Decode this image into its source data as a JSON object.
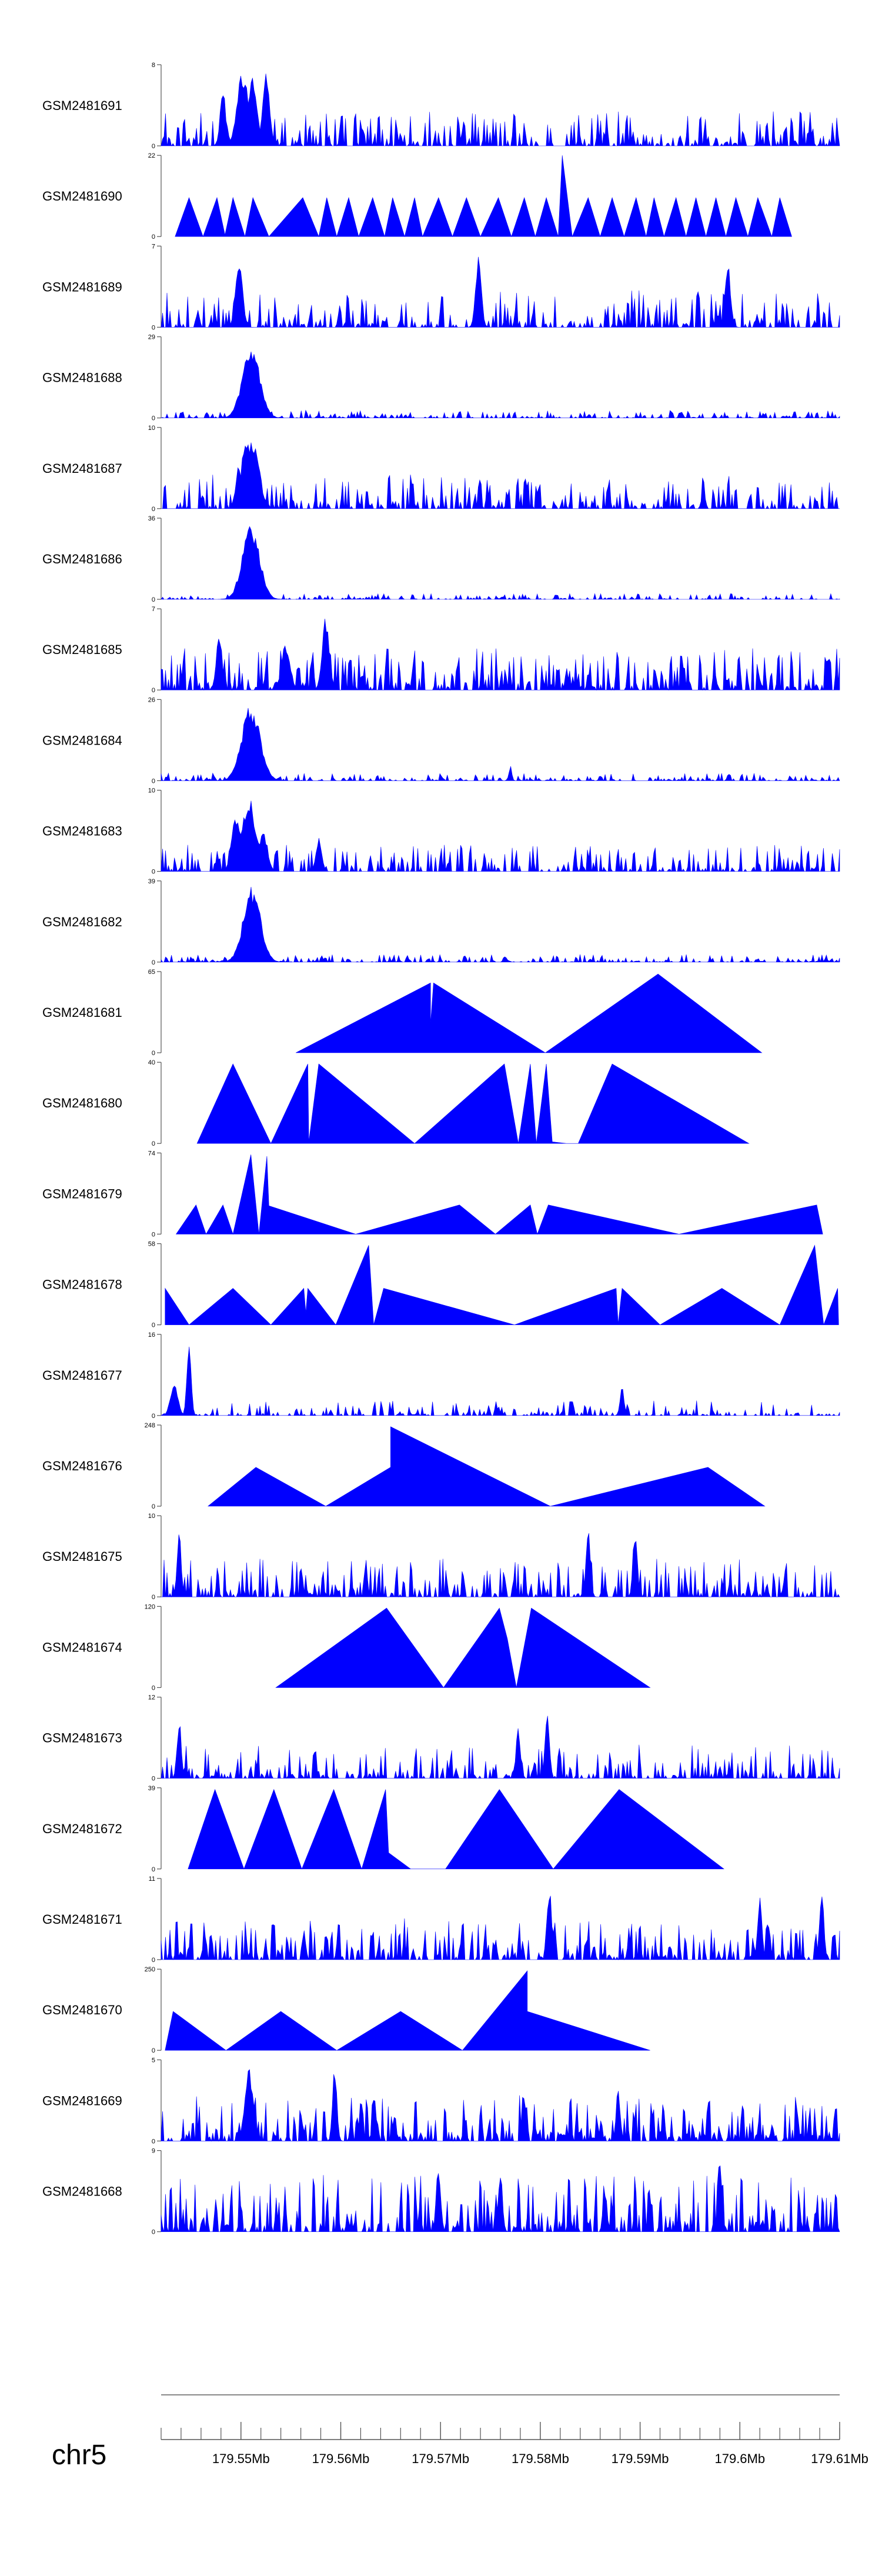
{
  "chart_data": {
    "type": "area",
    "fill_color": "#0000ff",
    "chromosome": "chr5",
    "x_range_mb": [
      179.542,
      179.61
    ],
    "x_ticks": [
      {
        "value": 179.55,
        "label": "179.55Mb"
      },
      {
        "value": 179.56,
        "label": "179.56Mb"
      },
      {
        "value": 179.57,
        "label": "179.57Mb"
      },
      {
        "value": 179.58,
        "label": "179.58Mb"
      },
      {
        "value": 179.59,
        "label": "179.59Mb"
      },
      {
        "value": 179.6,
        "label": "179.6Mb"
      },
      {
        "value": 179.61,
        "label": "179.61Mb"
      }
    ],
    "tracks": [
      {
        "name": "GSM2481691",
        "ymax": 8,
        "ymax_label": "8",
        "ymin_label": "0",
        "style": "noise",
        "density": 0.55,
        "base": 0.18,
        "peaks": [
          [
            179.5502,
            0.95,
            0.0008
          ],
          [
            179.5512,
            0.9,
            0.0006
          ],
          [
            179.5525,
            0.9,
            0.0005
          ],
          [
            179.5482,
            0.7,
            0.0004
          ]
        ]
      },
      {
        "name": "GSM2481690",
        "ymax": 22,
        "ymax_label": "22",
        "ymin_label": "0",
        "style": "points",
        "points": [
          [
            179.5434,
            0
          ],
          [
            179.5448,
            0.48
          ],
          [
            179.5462,
            0
          ],
          [
            179.5476,
            0.48
          ],
          [
            179.5484,
            0.02
          ],
          [
            179.5492,
            0.48
          ],
          [
            179.5504,
            0
          ],
          [
            179.5512,
            0.48
          ],
          [
            179.5528,
            0
          ],
          [
            179.5562,
            0.48
          ],
          [
            179.5578,
            0
          ],
          [
            179.5586,
            0.48
          ],
          [
            179.5596,
            0
          ],
          [
            179.5608,
            0.48
          ],
          [
            179.5618,
            0
          ],
          [
            179.5632,
            0.48
          ],
          [
            179.5644,
            0
          ],
          [
            179.5652,
            0.48
          ],
          [
            179.5664,
            0
          ],
          [
            179.5674,
            0.48
          ],
          [
            179.5682,
            0
          ],
          [
            179.5698,
            0.48
          ],
          [
            179.5712,
            0
          ],
          [
            179.5726,
            0.48
          ],
          [
            179.574,
            0
          ],
          [
            179.5758,
            0.48
          ],
          [
            179.5771,
            0
          ],
          [
            179.5784,
            0.48
          ],
          [
            179.5795,
            0
          ],
          [
            179.5806,
            0.48
          ],
          [
            179.5818,
            0
          ],
          [
            179.5822,
            1.0
          ],
          [
            179.5832,
            0
          ],
          [
            179.5848,
            0.48
          ],
          [
            179.586,
            0
          ],
          [
            179.5872,
            0.48
          ],
          [
            179.5884,
            0
          ],
          [
            179.5896,
            0.48
          ],
          [
            179.5906,
            0
          ],
          [
            179.5914,
            0.48
          ],
          [
            179.5924,
            0
          ],
          [
            179.5936,
            0.48
          ],
          [
            179.5946,
            0
          ],
          [
            179.5956,
            0.48
          ],
          [
            179.5966,
            0
          ],
          [
            179.5976,
            0.48
          ],
          [
            179.5986,
            0
          ],
          [
            179.5996,
            0.48
          ],
          [
            179.6008,
            0
          ],
          [
            179.6018,
            0.48
          ],
          [
            179.6032,
            0
          ],
          [
            179.604,
            0.48
          ],
          [
            179.6052,
            0
          ]
        ]
      },
      {
        "name": "GSM2481689",
        "ymax": 7,
        "ymax_label": "7",
        "ymin_label": "0",
        "style": "noise",
        "density": 0.55,
        "base": 0.2,
        "peaks": [
          [
            179.5738,
            0.95,
            0.0004
          ],
          [
            179.5498,
            0.85,
            0.0005
          ],
          [
            179.5988,
            0.8,
            0.0004
          ]
        ]
      },
      {
        "name": "GSM2481688",
        "ymax": 29,
        "ymax_label": "29",
        "ymin_label": "0",
        "style": "peak",
        "density": 0.5,
        "base": 0.04,
        "peaks": [
          [
            179.551,
            0.95,
            0.0012
          ],
          [
            179.5504,
            0.7,
            0.0004
          ]
        ]
      },
      {
        "name": "GSM2481687",
        "ymax": 10,
        "ymax_label": "10",
        "ymin_label": "0",
        "style": "noise",
        "density": 0.5,
        "base": 0.18,
        "peaks": [
          [
            179.5505,
            0.98,
            0.0006
          ],
          [
            179.5512,
            0.85,
            0.0009
          ],
          [
            179.5498,
            0.6,
            0.0004
          ]
        ]
      },
      {
        "name": "GSM2481686",
        "ymax": 36,
        "ymax_label": "36",
        "ymin_label": "0",
        "style": "peak",
        "density": 0.45,
        "base": 0.03,
        "peaks": [
          [
            179.551,
            0.95,
            0.0012
          ],
          [
            179.5507,
            0.7,
            0.0004
          ]
        ]
      },
      {
        "name": "GSM2481685",
        "ymax": 7,
        "ymax_label": "7",
        "ymin_label": "0",
        "style": "noise",
        "density": 0.6,
        "base": 0.22,
        "peaks": [
          [
            179.5585,
            0.95,
            0.0005
          ],
          [
            179.5478,
            0.75,
            0.0004
          ],
          [
            179.5545,
            0.6,
            0.0006
          ]
        ]
      },
      {
        "name": "GSM2481684",
        "ymax": 26,
        "ymax_label": "26",
        "ymin_label": "0",
        "style": "peak",
        "density": 0.5,
        "base": 0.04,
        "peaks": [
          [
            179.551,
            0.95,
            0.0013
          ],
          [
            179.5504,
            0.75,
            0.0004
          ],
          [
            179.577,
            0.2,
            0.0002
          ]
        ]
      },
      {
        "name": "GSM2481683",
        "ymax": 10,
        "ymax_label": "10",
        "ymin_label": "0",
        "style": "noise",
        "density": 0.5,
        "base": 0.14,
        "peaks": [
          [
            179.5508,
            0.95,
            0.001
          ],
          [
            179.5495,
            0.7,
            0.0006
          ],
          [
            179.5522,
            0.55,
            0.0006
          ],
          [
            179.5578,
            0.45,
            0.0004
          ]
        ]
      },
      {
        "name": "GSM2481682",
        "ymax": 39,
        "ymax_label": "39",
        "ymin_label": "0",
        "style": "peak",
        "density": 0.5,
        "base": 0.04,
        "peaks": [
          [
            179.5511,
            0.95,
            0.0012
          ],
          [
            179.5505,
            0.75,
            0.0004
          ]
        ]
      },
      {
        "name": "GSM2481681",
        "ymax": 65,
        "ymax_label": "65",
        "ymin_label": "0",
        "style": "points",
        "points": [
          [
            179.5555,
            0
          ],
          [
            179.569,
            0.86
          ],
          [
            179.569,
            0.35
          ],
          [
            179.5693,
            0.86
          ],
          [
            179.5805,
            0
          ],
          [
            179.5918,
            0.97
          ],
          [
            179.6022,
            0
          ]
        ]
      },
      {
        "name": "GSM2481680",
        "ymax": 40,
        "ymax_label": "40",
        "ymin_label": "0",
        "style": "points",
        "points": [
          [
            179.5456,
            0
          ],
          [
            179.5492,
            0.98
          ],
          [
            179.553,
            0
          ],
          [
            179.5567,
            0.98
          ],
          [
            179.5568,
            0.02
          ],
          [
            179.5578,
            0.98
          ],
          [
            179.5674,
            0
          ],
          [
            179.5764,
            0.98
          ],
          [
            179.5778,
            0
          ],
          [
            179.579,
            0.98
          ],
          [
            179.5796,
            0
          ],
          [
            179.5806,
            0.98
          ],
          [
            179.5812,
            0.02
          ],
          [
            179.5826,
            0
          ],
          [
            179.5838,
            0
          ],
          [
            179.5872,
            0.98
          ],
          [
            179.6009,
            0
          ]
        ]
      },
      {
        "name": "GSM2481679",
        "ymax": 74,
        "ymax_label": "74",
        "ymin_label": "0",
        "style": "points",
        "points": [
          [
            179.5435,
            0
          ],
          [
            179.5455,
            0.36
          ],
          [
            179.5465,
            0
          ],
          [
            179.5482,
            0.36
          ],
          [
            179.5492,
            0
          ],
          [
            179.551,
            0.98
          ],
          [
            179.5518,
            0
          ],
          [
            179.5526,
            0.96
          ],
          [
            179.5528,
            0.35
          ],
          [
            179.5615,
            0
          ],
          [
            179.5719,
            0.36
          ],
          [
            179.5755,
            0
          ],
          [
            179.579,
            0.36
          ],
          [
            179.5797,
            0
          ],
          [
            179.5808,
            0.36
          ],
          [
            179.5939,
            0
          ],
          [
            179.6077,
            0.36
          ],
          [
            179.6083,
            0
          ]
        ]
      },
      {
        "name": "GSM2481678",
        "ymax": 58,
        "ymax_label": "58",
        "ymin_label": "0",
        "style": "points",
        "points": [
          [
            179.5424,
            0.45
          ],
          [
            179.5448,
            0
          ],
          [
            179.5492,
            0.45
          ],
          [
            179.553,
            0
          ],
          [
            179.5563,
            0.45
          ],
          [
            179.5565,
            0.15
          ],
          [
            179.5567,
            0.45
          ],
          [
            179.5595,
            0
          ],
          [
            179.5628,
            0.98
          ],
          [
            179.5633,
            0
          ],
          [
            179.5643,
            0.45
          ],
          [
            179.5774,
            0
          ],
          [
            179.5876,
            0.45
          ],
          [
            179.5878,
            0.01
          ],
          [
            179.5882,
            0.45
          ],
          [
            179.592,
            0
          ],
          [
            179.5982,
            0.45
          ],
          [
            179.604,
            0
          ],
          [
            179.6075,
            0.98
          ],
          [
            179.6084,
            0
          ],
          [
            179.6098,
            0.45
          ],
          [
            179.6099,
            0
          ]
        ]
      },
      {
        "name": "GSM2481677",
        "ymax": 16,
        "ymax_label": "16",
        "ymin_label": "0",
        "style": "noise",
        "density": 0.4,
        "base": 0.08,
        "peaks": [
          [
            179.5448,
            0.95,
            0.0003
          ],
          [
            179.5433,
            0.45,
            0.0005
          ],
          [
            179.5882,
            0.35,
            0.0003
          ]
        ]
      },
      {
        "name": "GSM2481676",
        "ymax": 248,
        "ymax_label": "248",
        "ymin_label": "0",
        "style": "points",
        "points": [
          [
            179.5467,
            0
          ],
          [
            179.5515,
            0.48
          ],
          [
            179.5585,
            0
          ],
          [
            179.565,
            0.48
          ],
          [
            179.565,
            0.98
          ],
          [
            179.581,
            0
          ],
          [
            179.5968,
            0.48
          ],
          [
            179.6025,
            0
          ]
        ]
      },
      {
        "name": "GSM2481675",
        "ymax": 10,
        "ymax_label": "10",
        "ymin_label": "0",
        "style": "noise",
        "density": 0.55,
        "base": 0.2,
        "peaks": [
          [
            179.5848,
            0.95,
            0.0003
          ],
          [
            179.5895,
            0.9,
            0.0003
          ],
          [
            179.5438,
            0.85,
            0.0003
          ]
        ]
      },
      {
        "name": "GSM2481674",
        "ymax": 120,
        "ymax_label": "120",
        "ymin_label": "0",
        "style": "points",
        "points": [
          [
            179.5535,
            0
          ],
          [
            179.5646,
            0.98
          ],
          [
            179.5703,
            0
          ],
          [
            179.5759,
            0.98
          ],
          [
            179.5767,
            0.6
          ],
          [
            179.5776,
            0
          ],
          [
            179.5791,
            0.98
          ],
          [
            179.591,
            0
          ]
        ]
      },
      {
        "name": "GSM2481673",
        "ymax": 12,
        "ymax_label": "12",
        "ymin_label": "0",
        "style": "noise",
        "density": 0.5,
        "base": 0.18,
        "peaks": [
          [
            179.5807,
            0.98,
            0.0003
          ],
          [
            179.5778,
            0.7,
            0.0003
          ],
          [
            179.5438,
            0.75,
            0.0003
          ]
        ]
      },
      {
        "name": "GSM2481672",
        "ymax": 39,
        "ymax_label": "39",
        "ymin_label": "0",
        "style": "points",
        "points": [
          [
            179.5447,
            0
          ],
          [
            179.5474,
            0.98
          ],
          [
            179.5503,
            0
          ],
          [
            179.5533,
            0.98
          ],
          [
            179.5561,
            0
          ],
          [
            179.5593,
            0.98
          ],
          [
            179.5621,
            0
          ],
          [
            179.5645,
            0.98
          ],
          [
            179.5648,
            0.2
          ],
          [
            179.567,
            0
          ],
          [
            179.5705,
            0
          ],
          [
            179.5759,
            0.98
          ],
          [
            179.5813,
            0
          ],
          [
            179.5879,
            0.98
          ],
          [
            179.5984,
            0
          ]
        ]
      },
      {
        "name": "GSM2481671",
        "ymax": 11,
        "ymax_label": "11",
        "ymin_label": "0",
        "style": "noise",
        "density": 0.6,
        "base": 0.22,
        "peaks": [
          [
            179.5809,
            0.95,
            0.0003
          ],
          [
            179.6082,
            0.95,
            0.0003
          ],
          [
            179.602,
            0.8,
            0.0003
          ]
        ]
      },
      {
        "name": "GSM2481670",
        "ymax": 250,
        "ymax_label": "250",
        "ymin_label": "0",
        "style": "points",
        "points": [
          [
            179.5424,
            0
          ],
          [
            179.5432,
            0.48
          ],
          [
            179.5485,
            0
          ],
          [
            179.554,
            0.48
          ],
          [
            179.5596,
            0
          ],
          [
            179.566,
            0.48
          ],
          [
            179.5722,
            0
          ],
          [
            179.5787,
            0.98
          ],
          [
            179.5787,
            0.48
          ],
          [
            179.591,
            0
          ]
        ]
      },
      {
        "name": "GSM2481669",
        "ymax": 5,
        "ymax_label": "5",
        "ymin_label": "0",
        "style": "noise",
        "density": 0.65,
        "base": 0.24,
        "peaks": [
          [
            179.5508,
            0.9,
            0.0006
          ],
          [
            179.5594,
            0.95,
            0.0003
          ],
          [
            179.5878,
            0.65,
            0.0003
          ]
        ]
      },
      {
        "name": "GSM2481668",
        "ymax": 9,
        "ymax_label": "9",
        "ymin_label": "0",
        "style": "noise",
        "density": 0.6,
        "base": 0.3,
        "peaks": [
          [
            179.5698,
            0.95,
            0.0003
          ],
          [
            179.598,
            0.95,
            0.0003
          ],
          [
            179.576,
            0.75,
            0.0003
          ]
        ]
      }
    ]
  }
}
